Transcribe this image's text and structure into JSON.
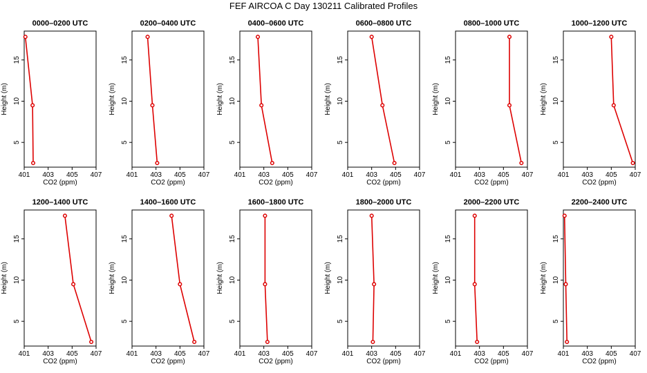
{
  "title": "FEF AIRCOA C  Day 130211  Calibrated Profiles",
  "chart_data": {
    "type": "line",
    "xlabel": "CO2 (ppm)",
    "ylabel": "Height (m)",
    "xlim": [
      401,
      407
    ],
    "ylim": [
      2,
      18.5
    ],
    "xticks": [
      401,
      403,
      405,
      407
    ],
    "yticks": [
      5,
      10,
      15
    ],
    "grid": false,
    "line_color": "#dd0000",
    "panels": [
      {
        "title": "0000–0200 UTC",
        "points": [
          {
            "x": 401.1,
            "y": 17.8
          },
          {
            "x": 401.7,
            "y": 9.5
          },
          {
            "x": 401.75,
            "y": 2.5
          }
        ]
      },
      {
        "title": "0200–0400 UTC",
        "points": [
          {
            "x": 402.3,
            "y": 17.8
          },
          {
            "x": 402.7,
            "y": 9.5
          },
          {
            "x": 403.1,
            "y": 2.5
          }
        ]
      },
      {
        "title": "0400–0600 UTC",
        "points": [
          {
            "x": 402.5,
            "y": 17.8
          },
          {
            "x": 402.8,
            "y": 9.5
          },
          {
            "x": 403.7,
            "y": 2.5
          }
        ]
      },
      {
        "title": "0600–0800 UTC",
        "points": [
          {
            "x": 403.0,
            "y": 17.8
          },
          {
            "x": 403.9,
            "y": 9.5
          },
          {
            "x": 404.9,
            "y": 2.5
          }
        ]
      },
      {
        "title": "0800–1000 UTC",
        "points": [
          {
            "x": 405.5,
            "y": 17.8
          },
          {
            "x": 405.5,
            "y": 9.5
          },
          {
            "x": 406.5,
            "y": 2.5
          }
        ]
      },
      {
        "title": "1000–1200 UTC",
        "points": [
          {
            "x": 405.0,
            "y": 17.8
          },
          {
            "x": 405.2,
            "y": 9.5
          },
          {
            "x": 406.8,
            "y": 2.5
          }
        ]
      },
      {
        "title": "1200–1400 UTC",
        "points": [
          {
            "x": 404.4,
            "y": 17.8
          },
          {
            "x": 405.1,
            "y": 9.5
          },
          {
            "x": 406.6,
            "y": 2.5
          }
        ]
      },
      {
        "title": "1400–1600 UTC",
        "points": [
          {
            "x": 404.3,
            "y": 17.8
          },
          {
            "x": 405.0,
            "y": 9.5
          },
          {
            "x": 406.2,
            "y": 2.5
          }
        ]
      },
      {
        "title": "1600–1800 UTC",
        "points": [
          {
            "x": 403.1,
            "y": 17.8
          },
          {
            "x": 403.1,
            "y": 9.5
          },
          {
            "x": 403.3,
            "y": 2.5
          }
        ]
      },
      {
        "title": "1800–2000 UTC",
        "points": [
          {
            "x": 403.0,
            "y": 17.8
          },
          {
            "x": 403.2,
            "y": 9.5
          },
          {
            "x": 403.1,
            "y": 2.5
          }
        ]
      },
      {
        "title": "2000–2200 UTC",
        "points": [
          {
            "x": 402.6,
            "y": 17.8
          },
          {
            "x": 402.6,
            "y": 9.5
          },
          {
            "x": 402.8,
            "y": 2.5
          }
        ]
      },
      {
        "title": "2200–2400 UTC",
        "points": [
          {
            "x": 401.1,
            "y": 17.8
          },
          {
            "x": 401.2,
            "y": 9.5
          },
          {
            "x": 401.3,
            "y": 2.5
          }
        ]
      }
    ]
  }
}
